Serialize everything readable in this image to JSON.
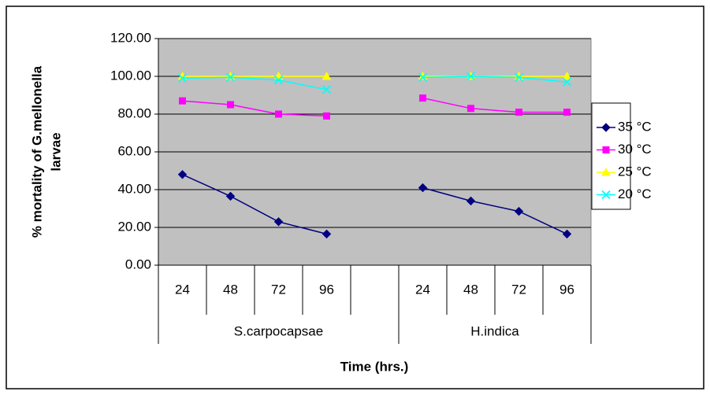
{
  "chart_data": {
    "type": "line",
    "xlabel": "Time (hrs.)",
    "ylabel": [
      "% mortality of G.mellonella",
      "larvae"
    ],
    "categories": [
      "24",
      "48",
      "72",
      "96",
      null,
      "24",
      "48",
      "72",
      "96"
    ],
    "groups": [
      "S.carpocapsae",
      "H.indica"
    ],
    "ylim": [
      0,
      120
    ],
    "yticks": [
      {
        "value": 0,
        "label": "0.00"
      },
      {
        "value": 20,
        "label": "20.00"
      },
      {
        "value": 40,
        "label": "40.00"
      },
      {
        "value": 60,
        "label": "60.00"
      },
      {
        "value": 80,
        "label": "80.00"
      },
      {
        "value": 100,
        "label": "100.00"
      },
      {
        "value": 120,
        "label": "120.00"
      }
    ],
    "grid": true,
    "legend": "right",
    "series": [
      {
        "name": "35 °C",
        "color": "#000080",
        "marker": "diamond",
        "values": [
          48,
          36.5,
          23,
          16.5,
          null,
          41,
          34,
          28.5,
          16.5
        ]
      },
      {
        "name": "30 °C",
        "color": "#FF00FF",
        "marker": "square",
        "values": [
          87,
          85,
          80,
          79,
          null,
          88.5,
          83,
          81,
          81
        ]
      },
      {
        "name": "25 °C",
        "color": "#FFFF00",
        "marker": "triangle",
        "values": [
          100,
          100,
          100,
          100,
          null,
          100,
          100,
          100,
          100
        ]
      },
      {
        "name": "20 °C",
        "color": "#00FFFF",
        "marker": "x",
        "values": [
          99,
          99.5,
          98,
          93,
          null,
          99.5,
          100,
          99.5,
          97
        ]
      }
    ]
  }
}
